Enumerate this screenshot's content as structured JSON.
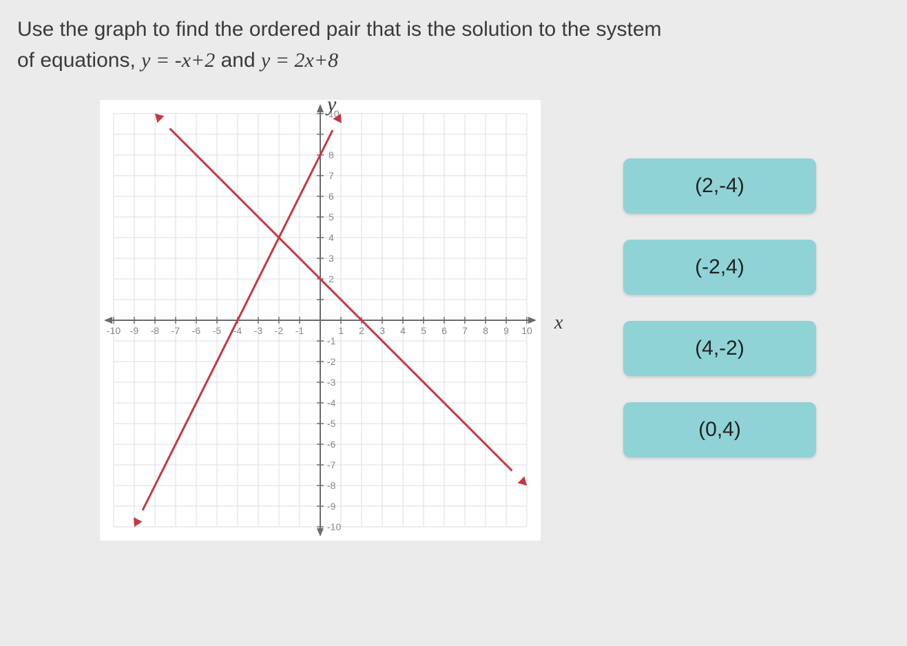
{
  "question": {
    "line1": "Use the graph to find the ordered pair that is the solution to the system",
    "line2_pre": "of equations, ",
    "eq1": "y = -x+2",
    "conj": " and ",
    "eq2": "y = 2x+8"
  },
  "graph": {
    "axis_y_label": "y",
    "axis_x_label": "x",
    "xlim": [
      -10,
      10
    ],
    "ylim": [
      -10,
      10
    ],
    "tick_step": 1,
    "grid_color": "#d8dde2",
    "axis_color": "#6a6a6a",
    "tick_label_color": "#888",
    "tick_label_fontsize": 14,
    "background_color": "#ffffff",
    "lines": [
      {
        "name": "line-1",
        "slope": -1,
        "intercept": 2,
        "color": "#c53741",
        "width": 3,
        "arrows": true
      },
      {
        "name": "line-2",
        "slope": 2,
        "intercept": 8,
        "color": "#c53741",
        "width": 3,
        "arrows": true
      }
    ],
    "x_tick_labels": [
      "-10",
      "-9",
      "-8",
      "-7",
      "-6",
      "-5",
      "-4",
      "-3",
      "-2",
      "-1",
      "",
      "1",
      "2",
      "3",
      "4",
      "5",
      "6",
      "7",
      "8",
      "9",
      "10"
    ],
    "y_tick_labels_pos": [
      "2",
      "3",
      "4",
      "5",
      "6",
      "7",
      "8",
      "",
      "10"
    ],
    "y_tick_labels_neg": [
      "-1",
      "-2",
      "-3",
      "-4",
      "-5",
      "-6",
      "-7",
      "-8",
      "-9",
      "-10"
    ]
  },
  "answers": [
    {
      "label": "(2,-4)"
    },
    {
      "label": "(-2,4)"
    },
    {
      "label": "(4,-2)"
    },
    {
      "label": "(0,4)"
    }
  ],
  "colors": {
    "button_bg": "#8fd3d6",
    "page_bg": "#ebebeb"
  }
}
